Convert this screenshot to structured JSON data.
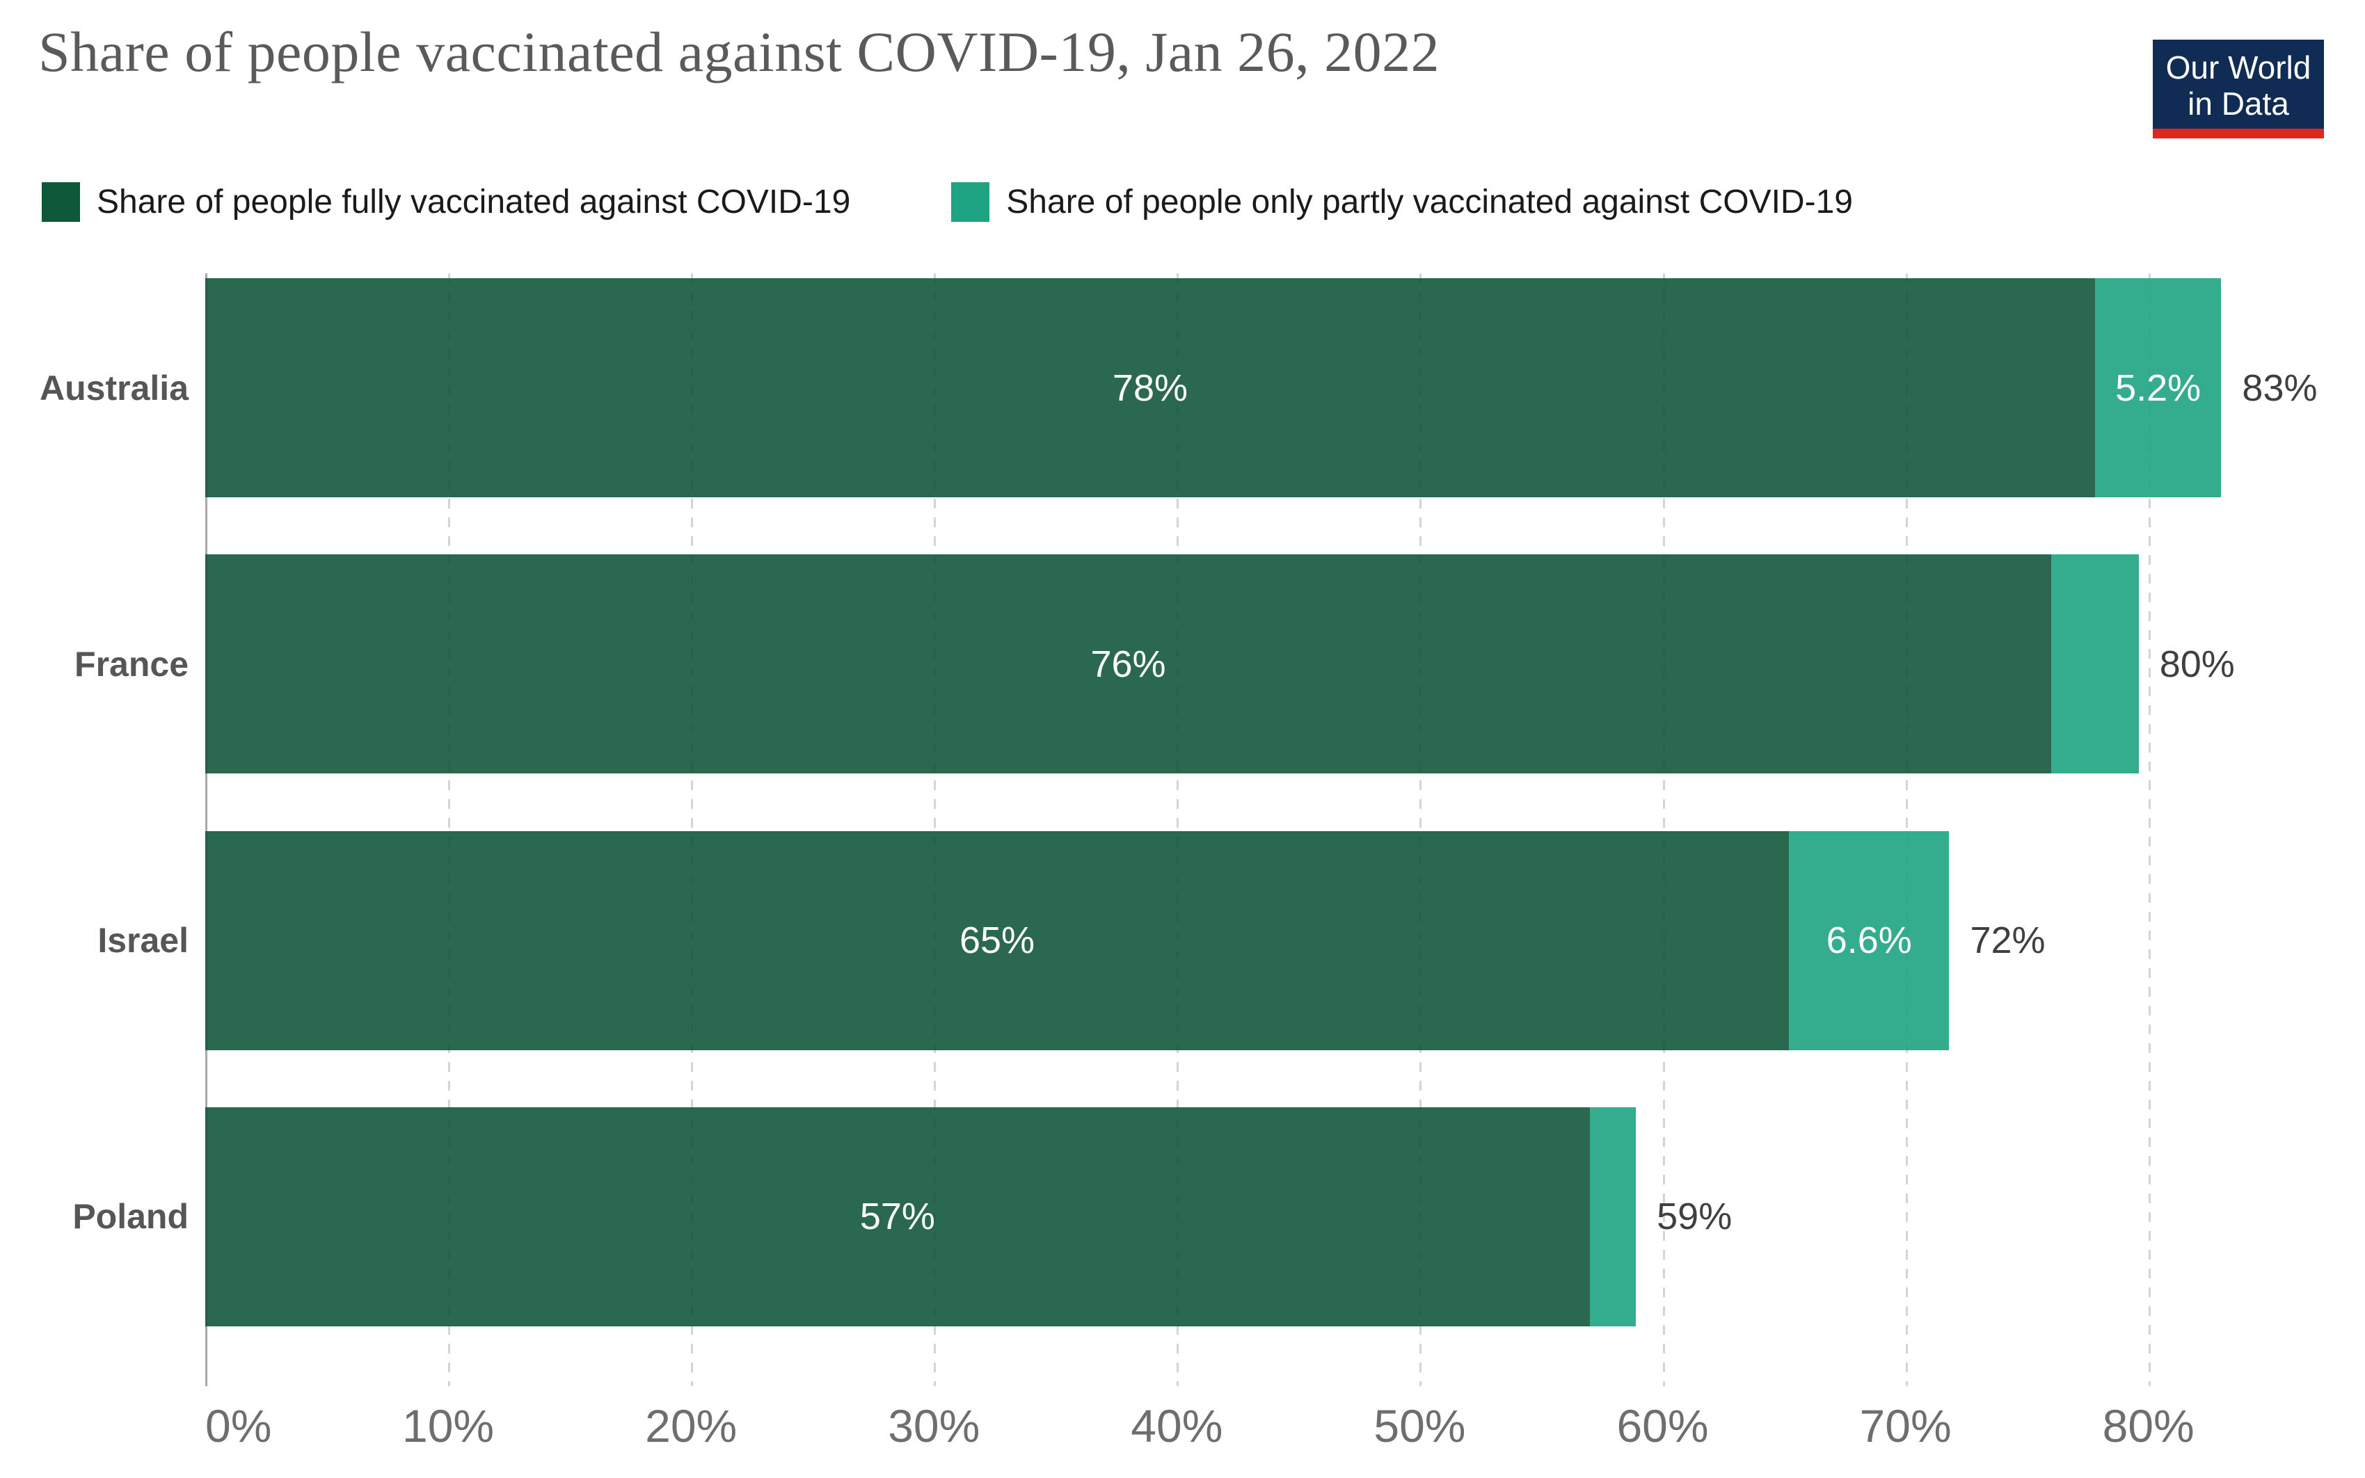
{
  "page": {
    "title": "Share of people vaccinated against COVID-19, Jan 26, 2022",
    "logo": {
      "line1": "Our World",
      "line2": "in Data"
    }
  },
  "legend": {
    "items": [
      {
        "label": "Share of people fully vaccinated against COVID-19",
        "color": "#10583A"
      },
      {
        "label": "Share of people only partly vaccinated against COVID-19",
        "color": "#1EA482"
      }
    ]
  },
  "colors": {
    "fully_swatch": "#10583A",
    "partly_swatch": "#1EA482",
    "fully_bar_rendered": "#2A6A53",
    "partly_bar_rendered": "#35AC8C",
    "logo_navy": "#102C54",
    "logo_red": "#DC281E",
    "title_gray": "#5A5A5A"
  },
  "chart_data": {
    "type": "bar",
    "stacked": true,
    "orientation": "horizontal",
    "title": "Share of people vaccinated against COVID-19, Jan 26, 2022",
    "categories": [
      "Australia",
      "France",
      "Israel",
      "Poland"
    ],
    "series": [
      {
        "name": "Share of people fully vaccinated against COVID-19",
        "color": "#10583A",
        "values": [
          77.8,
          76.0,
          65.2,
          57.0
        ],
        "labels": [
          "78%",
          "76%",
          "65%",
          "57%"
        ]
      },
      {
        "name": "Share of people only partly vaccinated against COVID-19",
        "color": "#1EA482",
        "values": [
          5.2,
          3.6,
          6.6,
          1.9
        ],
        "labels": [
          "5.2%",
          null,
          "6.6%",
          null
        ]
      }
    ],
    "totals": {
      "values": [
        83.0,
        79.6,
        71.8,
        58.9
      ],
      "labels": [
        "83%",
        "80%",
        "72%",
        "59%"
      ]
    },
    "xlabel": "",
    "ylabel": "",
    "axis": {
      "min": 0,
      "max": 87.8,
      "ticks": [
        0,
        10,
        20,
        30,
        40,
        50,
        60,
        70,
        80
      ],
      "tick_labels": [
        "0%",
        "10%",
        "20%",
        "30%",
        "40%",
        "50%",
        "60%",
        "70%",
        "80%"
      ],
      "grid": "dashed-vertical"
    },
    "legend_position": "top"
  }
}
